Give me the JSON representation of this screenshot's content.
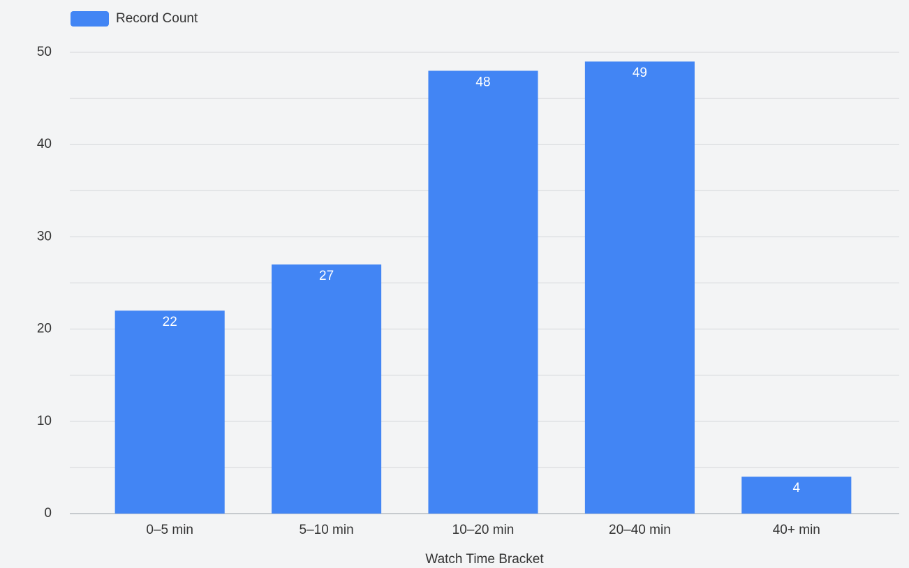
{
  "chart_data": {
    "type": "bar",
    "x_label": "Watch Time Bracket",
    "categories": [
      "0–5 min",
      "5–10 min",
      "10–20 min",
      "20–40 min",
      "40+ min"
    ],
    "series": [
      {
        "name": "Record Count",
        "color": "#4285f4",
        "values": [
          22,
          27,
          48,
          49,
          4
        ]
      }
    ],
    "ylim": [
      0,
      50
    ],
    "yticks": [
      0,
      10,
      20,
      30,
      40,
      50
    ],
    "y_minor_gridlines": [
      5,
      15,
      25,
      35,
      45
    ],
    "grid": true,
    "legend": "top-left",
    "value_labels_inside": true
  }
}
